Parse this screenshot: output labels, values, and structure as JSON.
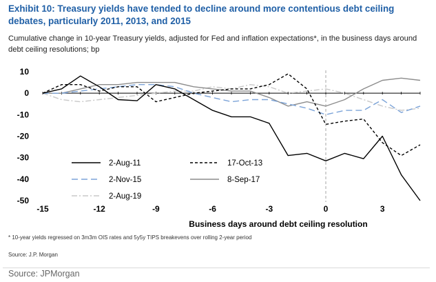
{
  "header": {
    "title": "Exhibit 10: Treasury yields have tended to decline around more contentious debt ceiling debates, particularly 2011, 2013, and 2015",
    "subtitle": "Cumulative change in 10-year Treasury yields, adjusted for Fed and inflation expectations*, in the business days around debt ceiling resolutions; bp"
  },
  "footer": {
    "footnote": "* 10-year yields regressed on 3m3m OIS rates and 5y5y TIPS breakevens over rolling 2-year period",
    "inner_source": "Source: J.P. Morgan",
    "source": "Source: JPMorgan"
  },
  "colors": {
    "title": "#1f5fa6",
    "series_2011": "#000000",
    "series_2013": "#000000",
    "series_2015": "#7ba3d8",
    "series_2017": "#8c8c8c",
    "series_2019": "#c8c8c8",
    "zero_line": "#a6a6a6"
  },
  "chart_data": {
    "type": "line",
    "title": "Exhibit 10: Treasury yields have tended to decline around more contentious debt ceiling debates, particularly 2011, 2013, and 2015",
    "xlabel": "Business days around debt ceiling resolution",
    "ylabel": "bp",
    "xlim": [
      -15,
      5
    ],
    "ylim": [
      -50,
      10
    ],
    "xticks": [
      -15,
      -12,
      -9,
      -6,
      -3,
      0,
      3
    ],
    "yticks": [
      10,
      0,
      -10,
      -20,
      -30,
      -40,
      -50
    ],
    "x": [
      -15,
      -14,
      -13,
      -12,
      -11,
      -10,
      -9,
      -8,
      -7,
      -6,
      -5,
      -4,
      -3,
      -2,
      -1,
      0,
      1,
      2,
      3,
      4,
      5
    ],
    "series": [
      {
        "name": "2-Aug-11",
        "style": "solid",
        "values": [
          0,
          2,
          8,
          3,
          -3,
          -3.5,
          4,
          2,
          -3,
          -8,
          -11,
          -11,
          -14,
          -29,
          -28,
          -31.5,
          -28,
          -30.5,
          -20,
          -38,
          -50
        ]
      },
      {
        "name": "17-Oct-13",
        "style": "dash",
        "values": [
          0,
          4,
          4,
          1,
          3,
          3,
          -4,
          -2,
          0,
          1,
          2,
          2,
          4,
          9,
          2,
          -14.5,
          -13,
          -12,
          -23,
          -29,
          -24
        ]
      },
      {
        "name": "2-Nov-15",
        "style": "longdash",
        "values": [
          0,
          0,
          1,
          2,
          3,
          4,
          4,
          3,
          0,
          -2,
          -4,
          -3,
          -3,
          -5,
          -7,
          -10,
          -8,
          -8,
          -3,
          -9,
          -6
        ]
      },
      {
        "name": "8-Sep-17",
        "style": "solid",
        "values": [
          0,
          0,
          2,
          4,
          4,
          5,
          5,
          5,
          3,
          2,
          1,
          1,
          -2,
          -6,
          -4,
          -6,
          -3,
          2,
          6,
          7,
          6
        ]
      },
      {
        "name": "2-Aug-19",
        "style": "dashdot",
        "values": [
          0,
          -3,
          -4,
          -3,
          -2,
          -1,
          0,
          1,
          1,
          3,
          2,
          4,
          3,
          0,
          1,
          2,
          0,
          -3,
          -6,
          -8,
          -7
        ]
      }
    ],
    "legend_position": "lower-left",
    "annotations": [
      "vertical dashed reference line at 0"
    ]
  }
}
